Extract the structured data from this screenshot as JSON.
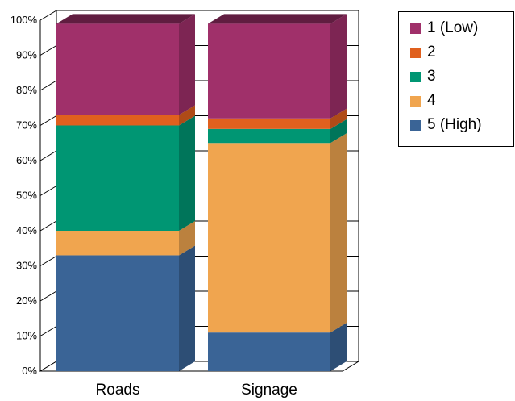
{
  "chart_data": {
    "type": "bar",
    "stacked": true,
    "percent": true,
    "categories": [
      "Roads",
      "Signage"
    ],
    "series": [
      {
        "name": "5 (High)",
        "color": "#3A6496",
        "values": [
          33,
          11
        ]
      },
      {
        "name": "4",
        "color": "#F0A54F",
        "values": [
          7,
          54
        ]
      },
      {
        "name": "3",
        "color": "#009673",
        "values": [
          30,
          4
        ]
      },
      {
        "name": "2",
        "color": "#E0601E",
        "values": [
          3,
          3
        ]
      },
      {
        "name": "1 (Low)",
        "color": "#A0306A",
        "values": [
          26,
          27
        ]
      }
    ],
    "ylim": [
      0,
      100
    ],
    "yticks": [
      "0%",
      "10%",
      "20%",
      "30%",
      "40%",
      "50%",
      "60%",
      "70%",
      "80%",
      "90%",
      "100%"
    ],
    "grid": true,
    "legend_position": "top-right",
    "legend_order": [
      "1 (Low)",
      "2",
      "3",
      "4",
      "5 (High)"
    ]
  }
}
